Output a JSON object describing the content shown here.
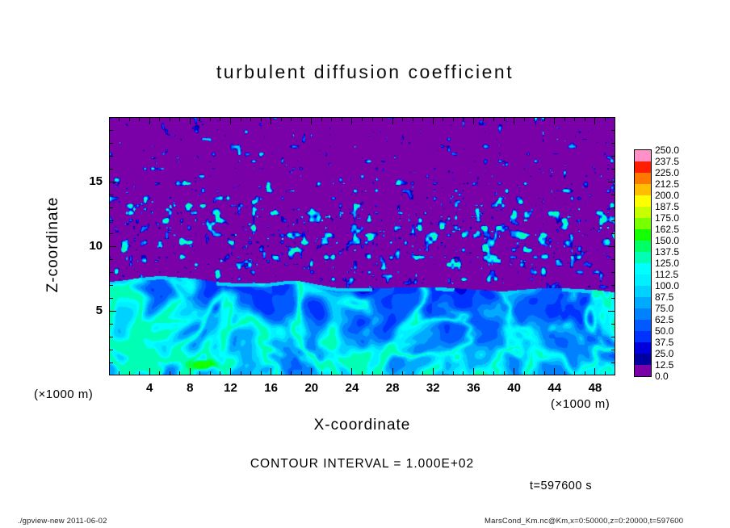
{
  "chart_data": {
    "type": "heatmap",
    "title": "turbulent diffusion coefficient",
    "xlabel": "X-coordinate",
    "ylabel": "Z-coordinate",
    "axis_unit_left": "(×1000 m)",
    "axis_unit_right": "(×1000 m)",
    "x_range": [
      0,
      50
    ],
    "z_range": [
      0,
      20
    ],
    "x_ticks": [
      4,
      8,
      12,
      16,
      20,
      24,
      28,
      32,
      36,
      40,
      44,
      48
    ],
    "z_ticks": [
      5,
      10,
      15
    ],
    "contour_interval_label": "CONTOUR INTERVAL = 1.000E+02",
    "time_label": "t=597600 s",
    "colorbar": {
      "levels": [
        "0.0",
        "12.5",
        "25.0",
        "37.5",
        "50.0",
        "62.5",
        "75.0",
        "87.5",
        "100.0",
        "112.5",
        "125.0",
        "137.5",
        "150.0",
        "162.5",
        "175.0",
        "187.5",
        "200.0",
        "212.5",
        "225.0",
        "237.5",
        "250.0"
      ],
      "colors_bottom_to_top": [
        "#7A00A8",
        "#0000A0",
        "#0000DC",
        "#0032FF",
        "#005AFF",
        "#0082FF",
        "#00AAFF",
        "#00D2FF",
        "#00F0FF",
        "#00FFFF",
        "#00FFB4",
        "#00FF64",
        "#14FF00",
        "#78FF00",
        "#C8FF00",
        "#FFFF00",
        "#FFBE00",
        "#FF7800",
        "#FF1E00",
        "#FF91C8"
      ]
    },
    "field_summary": {
      "description": "Filled-contour turbulent diffusion coefficient: turbulent boundary layer below z ≈ 5–8.5 (×1000 m) with vortex/filament structures in blue–cyan (≈12.5–150), a small green maximum near x≈9; near-zero purple region above with sparse blue–cyan speckles mainly at z ≈ 9–14 (×1000 m)."
    }
  },
  "footer": {
    "left": "./gpview-new  2011-06-02",
    "right": "MarsCond_Km.nc@Km,x=0:50000,z=0:20000,t=597600"
  }
}
